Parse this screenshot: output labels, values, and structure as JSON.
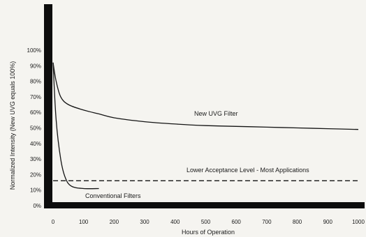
{
  "chart_data": {
    "type": "line",
    "title": "",
    "xlabel": "Hours of Operation",
    "ylabel": "Normalized Intensity (New UVG equals 100%)",
    "xlim": [
      0,
      1000
    ],
    "ylim": [
      0,
      100
    ],
    "x_ticks": [
      "0",
      "100",
      "200",
      "300",
      "400",
      "500",
      "600",
      "700",
      "800",
      "900",
      "1000"
    ],
    "y_ticks": [
      "0%",
      "10%",
      "20%",
      "30%",
      "40%",
      "50%",
      "60%",
      "70%",
      "80%",
      "90%",
      "100%"
    ],
    "grid": false,
    "series": [
      {
        "name": "New UVG Filter",
        "x": [
          0,
          10,
          25,
          50,
          100,
          150,
          200,
          300,
          400,
          500,
          600,
          700,
          800,
          900,
          1000
        ],
        "y": [
          92,
          80,
          70,
          65,
          61.5,
          59,
          56.5,
          54,
          52.5,
          51.5,
          51,
          50.5,
          50,
          49.5,
          49
        ]
      },
      {
        "name": "Conventional Filters",
        "x": [
          0,
          10,
          25,
          40,
          60,
          100,
          150
        ],
        "y": [
          92,
          55,
          30,
          18,
          12.5,
          11,
          11
        ]
      },
      {
        "name": "Lower Acceptance Level - Most Applications",
        "style": "dashed",
        "x": [
          0,
          1000
        ],
        "y": [
          16,
          16
        ]
      }
    ],
    "annotations": [
      "New UVG Filter",
      "Lower Acceptance Level - Most Applications",
      "Conventional Filters"
    ]
  }
}
